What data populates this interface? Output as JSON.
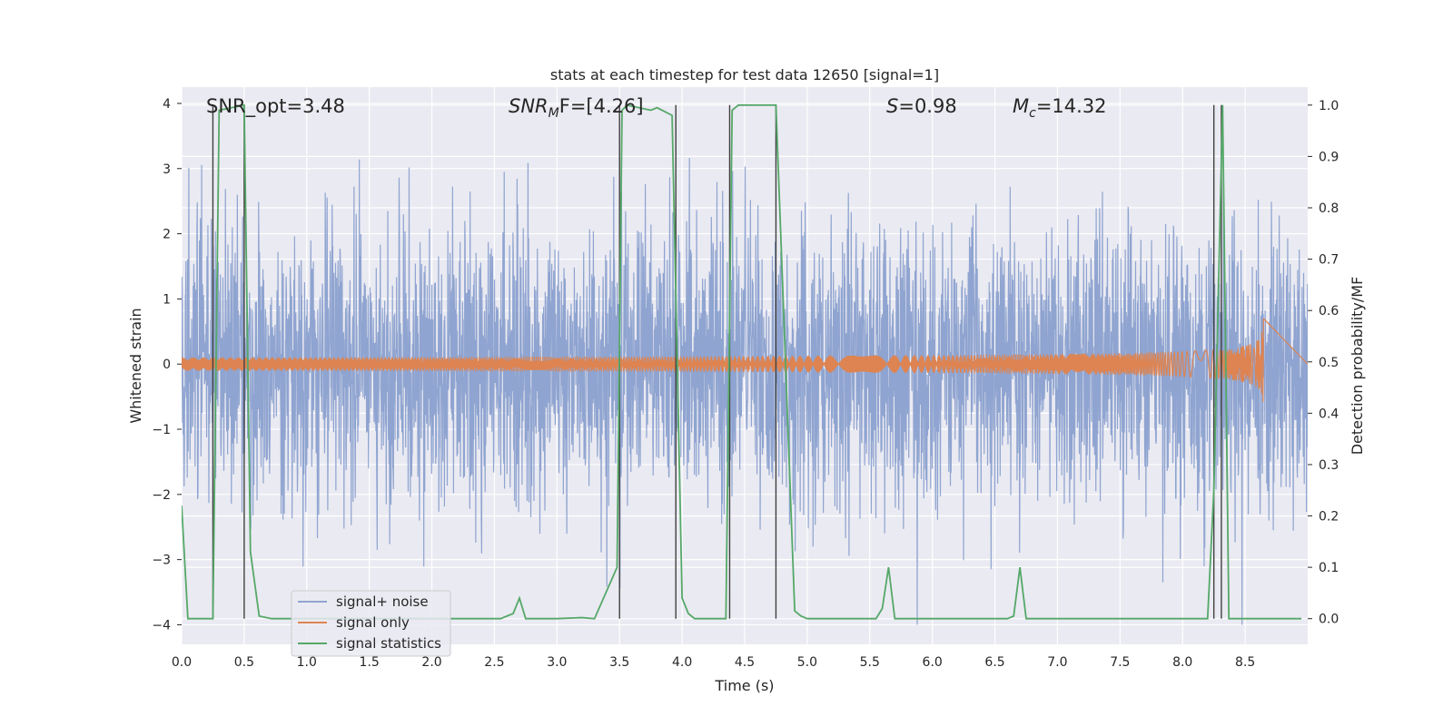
{
  "chart_data": {
    "type": "line",
    "title": "stats at each timestep for test data 12650 [signal=1]",
    "xlabel": "Time (s)",
    "ylabel": "Whitened strain",
    "y2label": "Detection probability/MF",
    "xlim": [
      0,
      9
    ],
    "ylim": [
      -4.3,
      4.25
    ],
    "y2lim": [
      -0.05,
      1.035
    ],
    "xticks": [
      0.0,
      0.5,
      1.0,
      1.5,
      2.0,
      2.5,
      3.0,
      3.5,
      4.0,
      4.5,
      5.0,
      5.5,
      6.0,
      6.5,
      7.0,
      7.5,
      8.0,
      8.5
    ],
    "xtick_labels": [
      "0.0",
      "0.5",
      "1.0",
      "1.5",
      "2.0",
      "2.5",
      "3.0",
      "3.5",
      "4.0",
      "4.5",
      "5.0",
      "5.5",
      "6.0",
      "6.5",
      "7.0",
      "7.5",
      "8.0",
      "8.5"
    ],
    "yticks": [
      4,
      3,
      2,
      1,
      0,
      -1,
      -2,
      -3,
      -4
    ],
    "ytick_labels": [
      "4",
      "3",
      "2",
      "1",
      "0",
      "−1",
      "−2",
      "−3",
      "−4"
    ],
    "y2ticks": [
      1.0,
      0.9,
      0.8,
      0.7,
      0.6,
      0.5,
      0.4,
      0.3,
      0.2,
      0.1,
      0.0
    ],
    "y2tick_labels": [
      "1.0",
      "0.9",
      "0.8",
      "0.7",
      "0.6",
      "0.5",
      "0.4",
      "0.3",
      "0.2",
      "0.1",
      "0.0"
    ],
    "grid": true,
    "legend_position": "lower-left",
    "annotations": {
      "snr_opt": "SNR_opt=3.48",
      "snr_mf_base": "SNR",
      "snr_mf_sub": "M",
      "snr_mf_rest": "F=[4.26]",
      "s_sym": "S",
      "s_val": "=0.98",
      "mc_sym": "M",
      "mc_sub": "c",
      "mc_val": "=14.32"
    },
    "series": [
      {
        "name": "signal+ noise",
        "color": "#8fa4d0",
        "kind": "noise",
        "t_start": 0.0,
        "t_end": 9.0,
        "typical_envelope": 1.5,
        "peak_max": 3.6,
        "trough_min": -4.0
      },
      {
        "name": "signal only",
        "color": "#dd8452",
        "kind": "chirp",
        "t_start": 0.0,
        "t_merger": 8.65,
        "peak_amplitude": 0.7
      },
      {
        "name": "signal statistics",
        "color": "#55a868",
        "kind": "probability",
        "x": [
          0.0,
          0.05,
          0.25,
          0.3,
          0.5,
          0.55,
          0.62,
          0.72,
          0.85,
          2.55,
          2.6,
          2.65,
          2.7,
          2.75,
          3.0,
          3.2,
          3.3,
          3.48,
          3.52,
          3.56,
          3.75,
          3.8,
          3.92,
          4.0,
          4.05,
          4.1,
          4.2,
          4.35,
          4.4,
          4.45,
          4.75,
          4.9,
          4.95,
          5.0,
          5.1,
          5.55,
          5.6,
          5.65,
          5.7,
          5.78,
          5.9,
          6.6,
          6.65,
          6.7,
          6.75,
          6.82,
          6.9,
          8.2,
          8.25,
          8.32,
          8.37,
          8.45,
          8.95
        ],
        "y": [
          0.22,
          0.0,
          0.0,
          0.99,
          1.0,
          0.13,
          0.005,
          0.0,
          0.0,
          0.0,
          0.005,
          0.01,
          0.04,
          0.0,
          0.0,
          0.002,
          0.0,
          0.1,
          0.99,
          1.0,
          0.99,
          0.995,
          0.98,
          0.04,
          0.01,
          0.0,
          0.0,
          0.0,
          0.99,
          1.0,
          1.0,
          0.015,
          0.005,
          0.0,
          0.0,
          0.0,
          0.02,
          0.1,
          0.0,
          0.0,
          0.0,
          0.0,
          0.005,
          0.1,
          0.0,
          0.0,
          0.0,
          0.0,
          0.25,
          1.0,
          0.0,
          0.0,
          0.0
        ]
      }
    ],
    "vertical_markers": [
      {
        "x": 0.25,
        "y2_top": 1.0
      },
      {
        "x": 0.5,
        "y2_top": 1.0
      },
      {
        "x": 3.5,
        "y2_top": 1.0
      },
      {
        "x": 3.95,
        "y2_top": 1.0
      },
      {
        "x": 4.38,
        "y2_top": 1.0
      },
      {
        "x": 4.75,
        "y2_top": 1.0
      },
      {
        "x": 8.25,
        "y2_top": 1.0
      },
      {
        "x": 8.31,
        "y2_top": 1.0
      }
    ],
    "colors": {
      "background": "#eaeaf2",
      "grid": "#ffffff",
      "marker": "#404040"
    }
  }
}
